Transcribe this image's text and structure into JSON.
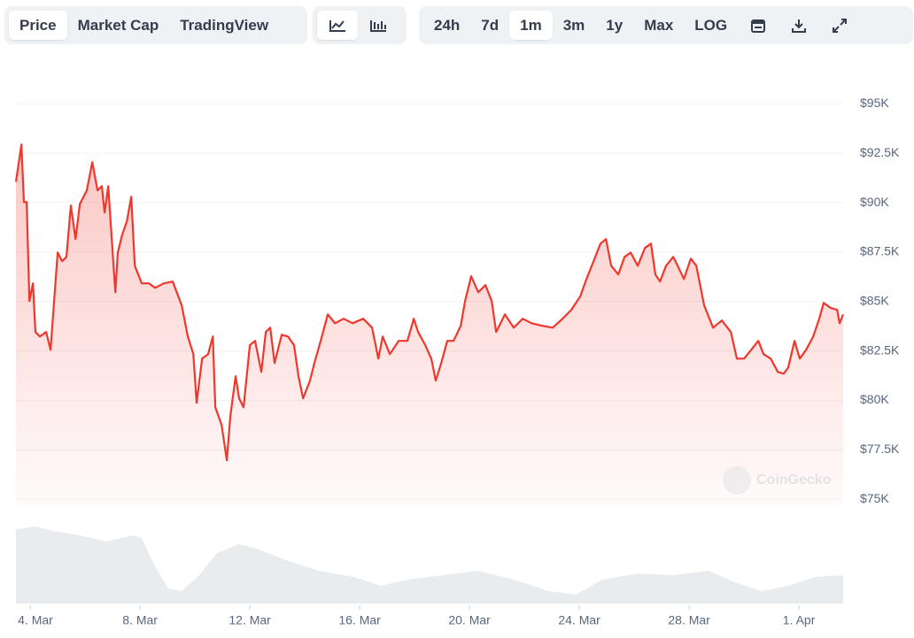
{
  "toolbar": {
    "views": [
      "Price",
      "Market Cap",
      "TradingView"
    ],
    "ranges": [
      "24h",
      "7d",
      "1m",
      "3m",
      "1y",
      "Max",
      "LOG"
    ]
  },
  "chart_data": {
    "type": "line",
    "watermark": "CoinGecko",
    "x": [
      3.48,
      3.68,
      3.77,
      3.87,
      3.97,
      4.1,
      4.19,
      4.35,
      4.58,
      4.74,
      5.0,
      5.16,
      5.32,
      5.48,
      5.65,
      5.81,
      6.06,
      6.26,
      6.45,
      6.61,
      6.71,
      6.84,
      6.97,
      7.1,
      7.19,
      7.35,
      7.52,
      7.68,
      7.81,
      8.06,
      8.32,
      8.55,
      8.87,
      9.19,
      9.52,
      9.74,
      9.94,
      10.06,
      10.26,
      10.48,
      10.65,
      10.74,
      10.97,
      11.16,
      11.29,
      11.48,
      11.61,
      11.77,
      12.0,
      12.19,
      12.42,
      12.58,
      12.74,
      12.9,
      13.16,
      13.39,
      13.61,
      13.77,
      13.94,
      14.19,
      14.35,
      14.58,
      14.84,
      15.1,
      15.42,
      15.74,
      16.13,
      16.45,
      16.68,
      16.84,
      17.1,
      17.42,
      17.74,
      17.97,
      18.13,
      18.39,
      18.61,
      18.77,
      18.97,
      19.19,
      19.42,
      19.68,
      19.84,
      20.06,
      20.32,
      20.58,
      20.81,
      20.97,
      21.29,
      21.61,
      21.94,
      22.26,
      22.65,
      23.03,
      23.39,
      23.71,
      24.03,
      24.26,
      24.52,
      24.77,
      24.97,
      25.16,
      25.42,
      25.65,
      25.87,
      26.13,
      26.39,
      26.61,
      26.77,
      26.94,
      27.16,
      27.42,
      27.58,
      27.81,
      28.06,
      28.26,
      28.55,
      28.87,
      29.19,
      29.52,
      29.74,
      30.0,
      30.26,
      30.52,
      30.71,
      30.97,
      31.23,
      31.45,
      31.61,
      31.84,
      32.03,
      32.26,
      32.52,
      32.74,
      32.9,
      33.16,
      33.39,
      33.48,
      33.61
    ],
    "series": [
      {
        "color": "#f0372d",
        "values": [
          91060,
          92940,
          90030,
          90030,
          85020,
          85920,
          83460,
          83230,
          83460,
          82560,
          87480,
          87040,
          87260,
          89860,
          88160,
          89940,
          90620,
          92050,
          90620,
          90840,
          89500,
          90840,
          88160,
          85470,
          87480,
          88380,
          89050,
          90300,
          86810,
          85920,
          85920,
          85690,
          85920,
          86010,
          84800,
          83230,
          82340,
          79880,
          82110,
          82340,
          83230,
          79650,
          78760,
          76970,
          79210,
          81220,
          80100,
          79650,
          82790,
          83010,
          81440,
          83460,
          83680,
          81890,
          83320,
          83230,
          82790,
          81220,
          80100,
          81000,
          81890,
          83010,
          84350,
          83900,
          84130,
          83900,
          84130,
          83680,
          82110,
          83230,
          82340,
          83010,
          83010,
          84130,
          83460,
          82790,
          82110,
          81000,
          81890,
          83010,
          83010,
          83770,
          85020,
          86280,
          85470,
          85830,
          85020,
          83460,
          84350,
          83680,
          84130,
          83900,
          83770,
          83680,
          84130,
          84580,
          85250,
          86140,
          87040,
          87930,
          88160,
          86810,
          86370,
          87260,
          87480,
          86810,
          87710,
          87930,
          86370,
          86010,
          86810,
          87260,
          86810,
          86140,
          87170,
          86810,
          84800,
          83680,
          84040,
          83460,
          82110,
          82110,
          82560,
          83010,
          82340,
          82110,
          81440,
          81350,
          81670,
          83010,
          82110,
          82560,
          83230,
          84130,
          84930,
          84670,
          84580,
          83900,
          84350
        ]
      }
    ],
    "xlim": [
      3.48,
      33.61
    ],
    "ylim": [
      74650,
      96000
    ],
    "xticks": [
      {
        "value": 4,
        "label": "4. Mar"
      },
      {
        "value": 8,
        "label": "8. Mar"
      },
      {
        "value": 12,
        "label": "12. Mar"
      },
      {
        "value": 16,
        "label": "16. Mar"
      },
      {
        "value": 20,
        "label": "20. Mar"
      },
      {
        "value": 24,
        "label": "24. Mar"
      },
      {
        "value": 28,
        "label": "28. Mar"
      },
      {
        "value": 32,
        "label": "1. Apr"
      }
    ],
    "yticks": [
      {
        "value": 75000,
        "label": "$75K"
      },
      {
        "value": 77500,
        "label": "$77.5K"
      },
      {
        "value": 80000,
        "label": "$80K"
      },
      {
        "value": 82500,
        "label": "$82.5K"
      },
      {
        "value": 85000,
        "label": "$85K"
      },
      {
        "value": 87500,
        "label": "$87.5K"
      },
      {
        "value": 90000,
        "label": "$90K"
      },
      {
        "value": 92500,
        "label": "$92.5K"
      },
      {
        "value": 95000,
        "label": "$95K"
      }
    ],
    "grid": true
  }
}
